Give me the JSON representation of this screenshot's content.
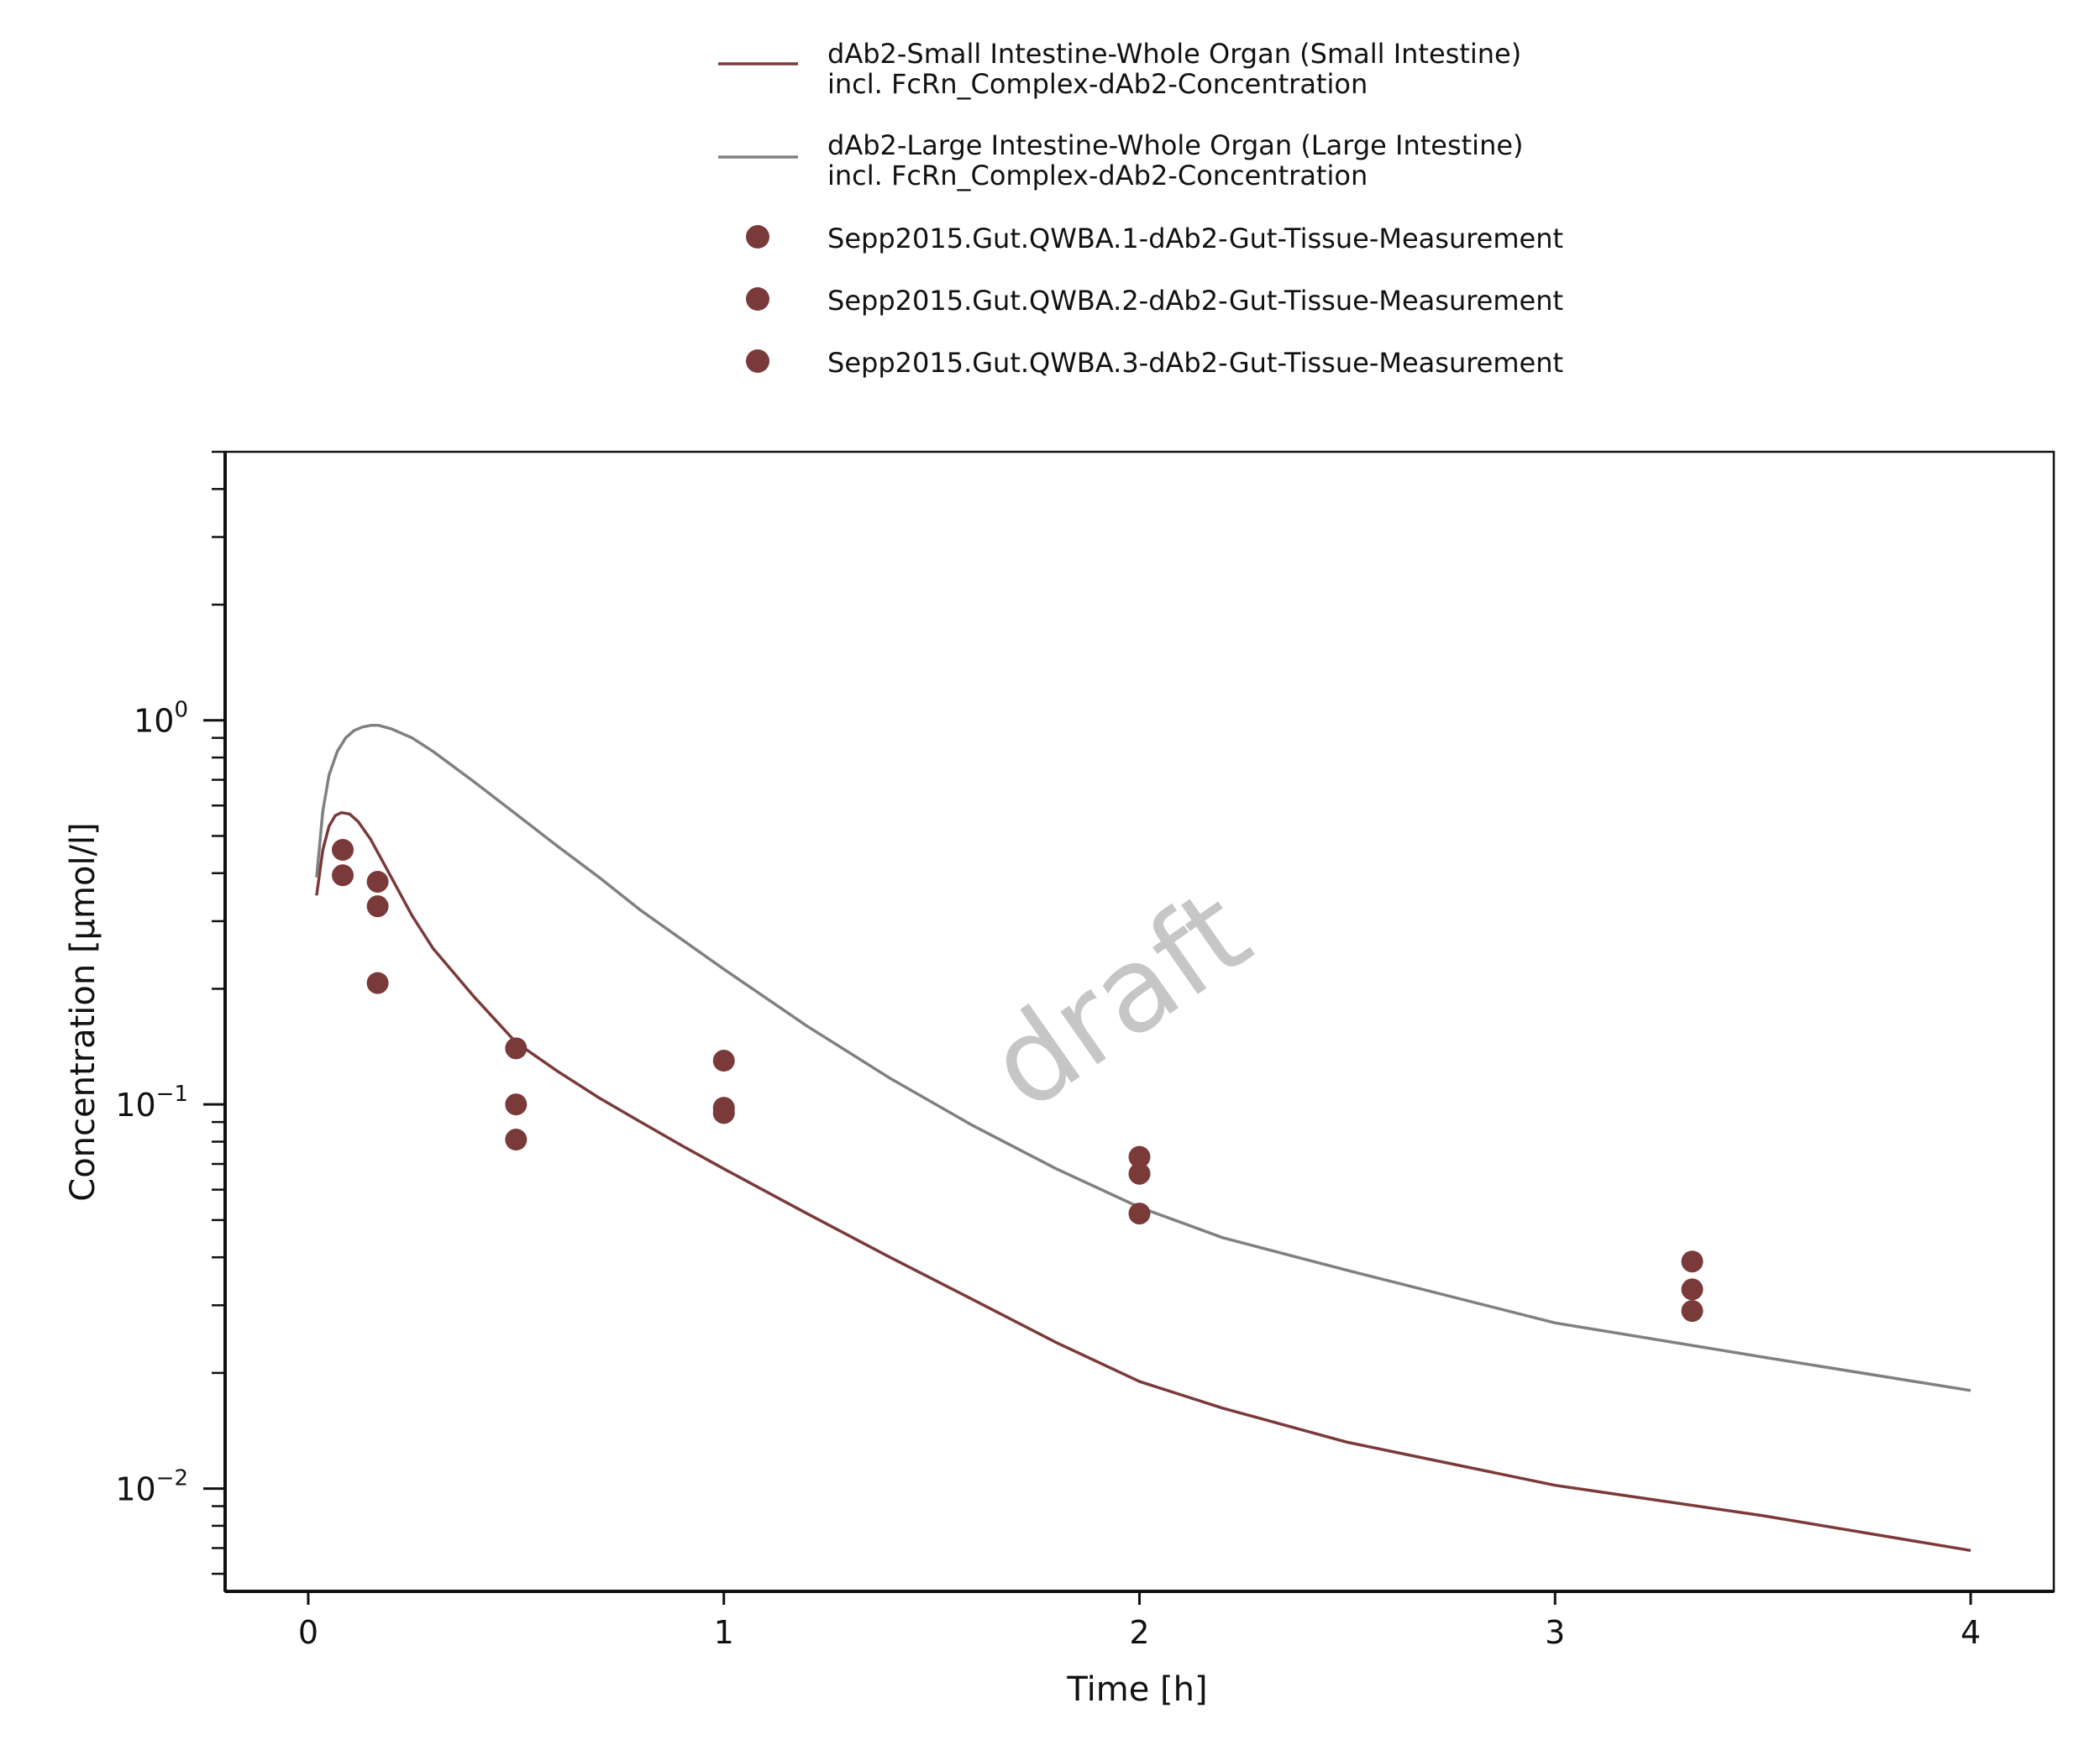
{
  "chart_data": {
    "type": "line",
    "xlabel": "Time [h]",
    "ylabel": "Concentration [µmol/l]",
    "xlim": [
      -0.2,
      4.2
    ],
    "ylim": [
      0.0054,
      5.0
    ],
    "yscale": "log",
    "x_ticks": [
      0,
      1,
      2,
      3,
      4
    ],
    "x_tick_labels": [
      "0",
      "1",
      "2",
      "3",
      "4"
    ],
    "y_ticks": [
      0.01,
      0.1,
      1
    ],
    "y_tick_labels": [
      {
        "base": "10",
        "exp": "−2"
      },
      {
        "base": "10",
        "exp": "−1"
      },
      {
        "base": "10",
        "exp": "0"
      }
    ],
    "grid": false,
    "legend_position": "top-center",
    "watermark": "draft",
    "series": [
      {
        "name": "dAb2-Small Intestine-Whole Organ (Small Intestine)",
        "name_line2": "incl. FcRn_Complex-dAb2-Concentration",
        "kind": "line",
        "color": "#7b3a3a",
        "x": [
          0.02,
          0.035,
          0.05,
          0.065,
          0.08,
          0.1,
          0.12,
          0.15,
          0.2,
          0.25,
          0.3,
          0.4,
          0.5,
          0.6,
          0.7,
          0.8,
          0.9,
          1.0,
          1.2,
          1.4,
          1.6,
          1.8,
          2.0,
          2.2,
          2.5,
          3.0,
          3.5,
          4.0
        ],
        "y": [
          0.35,
          0.46,
          0.53,
          0.565,
          0.575,
          0.57,
          0.545,
          0.49,
          0.39,
          0.31,
          0.255,
          0.19,
          0.145,
          0.122,
          0.104,
          0.09,
          0.078,
          0.068,
          0.052,
          0.04,
          0.031,
          0.024,
          0.019,
          0.0162,
          0.0132,
          0.0102,
          0.0085,
          0.0069
        ]
      },
      {
        "name": "dAb2-Large Intestine-Whole Organ (Large Intestine)",
        "name_line2": "incl. FcRn_Complex-dAb2-Concentration",
        "kind": "line",
        "color": "#808080",
        "x": [
          0.02,
          0.035,
          0.05,
          0.07,
          0.09,
          0.11,
          0.13,
          0.15,
          0.17,
          0.2,
          0.25,
          0.3,
          0.4,
          0.5,
          0.6,
          0.7,
          0.8,
          1.0,
          1.2,
          1.4,
          1.6,
          1.8,
          2.0,
          2.2,
          2.5,
          3.0,
          3.5,
          4.0
        ],
        "y": [
          0.39,
          0.58,
          0.72,
          0.83,
          0.9,
          0.94,
          0.96,
          0.97,
          0.97,
          0.95,
          0.9,
          0.83,
          0.69,
          0.57,
          0.47,
          0.39,
          0.32,
          0.225,
          0.16,
          0.117,
          0.088,
          0.068,
          0.054,
          0.045,
          0.037,
          0.027,
          0.022,
          0.018
        ]
      },
      {
        "name": "Sepp2015.Gut.QWBA.1-dAb2-Gut-Tissue-Measurement",
        "kind": "scatter",
        "color": "#7b3a3a",
        "x": [
          0.083,
          0.167,
          0.5,
          1.0,
          2.0,
          3.33
        ],
        "y": [
          0.46,
          0.38,
          0.14,
          0.13,
          0.073,
          0.039
        ]
      },
      {
        "name": "Sepp2015.Gut.QWBA.2-dAb2-Gut-Tissue-Measurement",
        "kind": "scatter",
        "color": "#7b3a3a",
        "x": [
          0.083,
          0.167,
          0.5,
          1.0,
          2.0,
          3.33
        ],
        "y": [
          0.395,
          0.328,
          0.1,
          0.098,
          0.066,
          0.033
        ]
      },
      {
        "name": "Sepp2015.Gut.QWBA.3-dAb2-Gut-Tissue-Measurement",
        "kind": "scatter",
        "color": "#7b3a3a",
        "x": [
          0.167,
          0.5,
          1.0,
          2.0,
          3.33
        ],
        "y": [
          0.207,
          0.081,
          0.095,
          0.052,
          0.029
        ]
      }
    ]
  }
}
